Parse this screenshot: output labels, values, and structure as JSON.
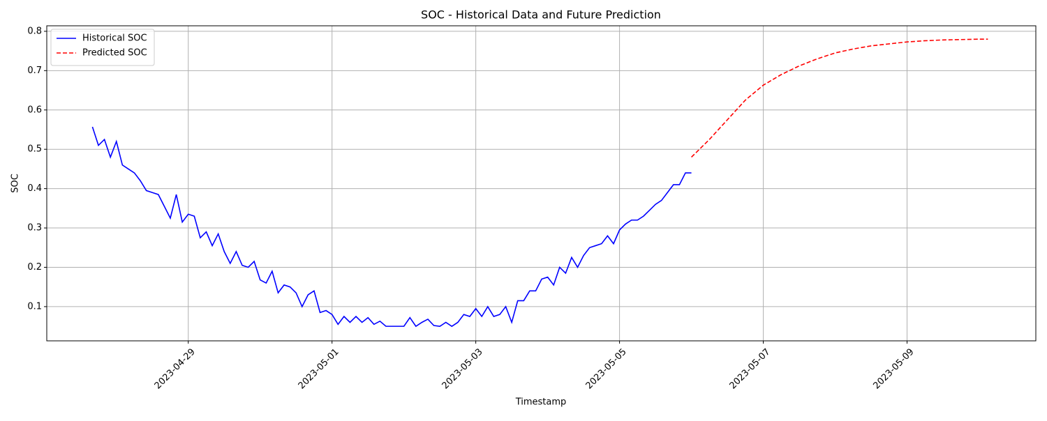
{
  "chart_data": {
    "type": "line",
    "title": "SOC - Historical Data and Future Prediction",
    "xlabel": "Timestamp",
    "ylabel": "SOC",
    "xlim": [
      "2023-04-27 00:45",
      "2023-05-10 19:00"
    ],
    "xticks": [
      "2023-04-29",
      "2023-05-01",
      "2023-05-03",
      "2023-05-05",
      "2023-05-07",
      "2023-05-09"
    ],
    "ylim": [
      0.013,
      0.814
    ],
    "yticks": [
      0.1,
      0.2,
      0.3,
      0.4,
      0.5,
      0.6,
      0.7,
      0.8
    ],
    "grid": true,
    "legend": "upper left",
    "series": [
      {
        "name": "Historical SOC",
        "color": "#0000ff",
        "dash": "solid",
        "x": [
          "2023-04-27 16:00",
          "2023-04-27 18:00",
          "2023-04-27 20:00",
          "2023-04-27 22:00",
          "2023-04-28 00:00",
          "2023-04-28 02:00",
          "2023-04-28 04:00",
          "2023-04-28 06:00",
          "2023-04-28 08:00",
          "2023-04-28 10:00",
          "2023-04-28 12:00",
          "2023-04-28 14:00",
          "2023-04-28 16:00",
          "2023-04-28 18:00",
          "2023-04-28 20:00",
          "2023-04-28 22:00",
          "2023-04-29 00:00",
          "2023-04-29 02:00",
          "2023-04-29 04:00",
          "2023-04-29 06:00",
          "2023-04-29 08:00",
          "2023-04-29 10:00",
          "2023-04-29 12:00",
          "2023-04-29 14:00",
          "2023-04-29 16:00",
          "2023-04-29 18:00",
          "2023-04-29 20:00",
          "2023-04-29 22:00",
          "2023-04-30 00:00",
          "2023-04-30 02:00",
          "2023-04-30 04:00",
          "2023-04-30 06:00",
          "2023-04-30 08:00",
          "2023-04-30 10:00",
          "2023-04-30 12:00",
          "2023-04-30 14:00",
          "2023-04-30 16:00",
          "2023-04-30 18:00",
          "2023-04-30 20:00",
          "2023-04-30 22:00",
          "2023-05-01 00:00",
          "2023-05-01 02:00",
          "2023-05-01 04:00",
          "2023-05-01 06:00",
          "2023-05-01 08:00",
          "2023-05-01 10:00",
          "2023-05-01 12:00",
          "2023-05-01 14:00",
          "2023-05-01 16:00",
          "2023-05-01 18:00",
          "2023-05-01 20:00",
          "2023-05-01 22:00",
          "2023-05-02 00:00",
          "2023-05-02 02:00",
          "2023-05-02 04:00",
          "2023-05-02 06:00",
          "2023-05-02 08:00",
          "2023-05-02 10:00",
          "2023-05-02 12:00",
          "2023-05-02 14:00",
          "2023-05-02 16:00",
          "2023-05-02 18:00",
          "2023-05-02 20:00",
          "2023-05-02 22:00",
          "2023-05-03 00:00",
          "2023-05-03 02:00",
          "2023-05-03 04:00",
          "2023-05-03 06:00",
          "2023-05-03 08:00",
          "2023-05-03 10:00",
          "2023-05-03 12:00",
          "2023-05-03 14:00",
          "2023-05-03 16:00",
          "2023-05-03 18:00",
          "2023-05-03 20:00",
          "2023-05-03 22:00",
          "2023-05-04 00:00",
          "2023-05-04 02:00",
          "2023-05-04 04:00",
          "2023-05-04 06:00",
          "2023-05-04 08:00",
          "2023-05-04 10:00",
          "2023-05-04 12:00",
          "2023-05-04 14:00",
          "2023-05-04 16:00",
          "2023-05-04 18:00",
          "2023-05-04 20:00",
          "2023-05-04 22:00",
          "2023-05-05 00:00",
          "2023-05-05 02:00",
          "2023-05-05 04:00",
          "2023-05-05 06:00",
          "2023-05-05 08:00",
          "2023-05-05 10:00",
          "2023-05-05 12:00",
          "2023-05-05 14:00",
          "2023-05-05 16:00",
          "2023-05-05 18:00",
          "2023-05-05 20:00",
          "2023-05-05 22:00",
          "2023-05-06 00:00"
        ],
        "values": [
          0.557,
          0.51,
          0.525,
          0.48,
          0.52,
          0.46,
          0.45,
          0.44,
          0.42,
          0.395,
          0.39,
          0.385,
          0.355,
          0.325,
          0.385,
          0.315,
          0.335,
          0.33,
          0.275,
          0.29,
          0.255,
          0.285,
          0.24,
          0.21,
          0.24,
          0.205,
          0.2,
          0.215,
          0.168,
          0.16,
          0.19,
          0.135,
          0.155,
          0.15,
          0.135,
          0.1,
          0.13,
          0.14,
          0.085,
          0.09,
          0.08,
          0.055,
          0.075,
          0.06,
          0.075,
          0.06,
          0.072,
          0.055,
          0.063,
          0.05,
          0.05,
          0.05,
          0.05,
          0.072,
          0.05,
          0.06,
          0.068,
          0.052,
          0.05,
          0.06,
          0.05,
          0.06,
          0.08,
          0.075,
          0.095,
          0.075,
          0.1,
          0.075,
          0.08,
          0.1,
          0.06,
          0.115,
          0.115,
          0.14,
          0.14,
          0.17,
          0.175,
          0.155,
          0.2,
          0.185,
          0.225,
          0.2,
          0.23,
          0.25,
          0.255,
          0.26,
          0.28,
          0.26,
          0.295,
          0.31,
          0.32,
          0.32,
          0.33,
          0.345,
          0.36,
          0.37,
          0.39,
          0.41,
          0.41,
          0.44,
          0.44
        ]
      },
      {
        "name": "Predicted SOC",
        "color": "#ff0000",
        "dash": "dashed",
        "x": [
          "2023-05-06 00:00",
          "2023-05-06 06:00",
          "2023-05-06 12:00",
          "2023-05-06 18:00",
          "2023-05-07 00:00",
          "2023-05-07 06:00",
          "2023-05-07 12:00",
          "2023-05-07 18:00",
          "2023-05-08 00:00",
          "2023-05-08 06:00",
          "2023-05-08 12:00",
          "2023-05-08 18:00",
          "2023-05-09 00:00",
          "2023-05-09 06:00",
          "2023-05-09 12:00",
          "2023-05-09 18:00",
          "2023-05-10 00:00",
          "2023-05-10 03:00"
        ],
        "values": [
          0.48,
          0.525,
          0.575,
          0.625,
          0.663,
          0.69,
          0.712,
          0.73,
          0.745,
          0.755,
          0.763,
          0.768,
          0.773,
          0.776,
          0.778,
          0.779,
          0.78,
          0.78
        ]
      }
    ]
  }
}
